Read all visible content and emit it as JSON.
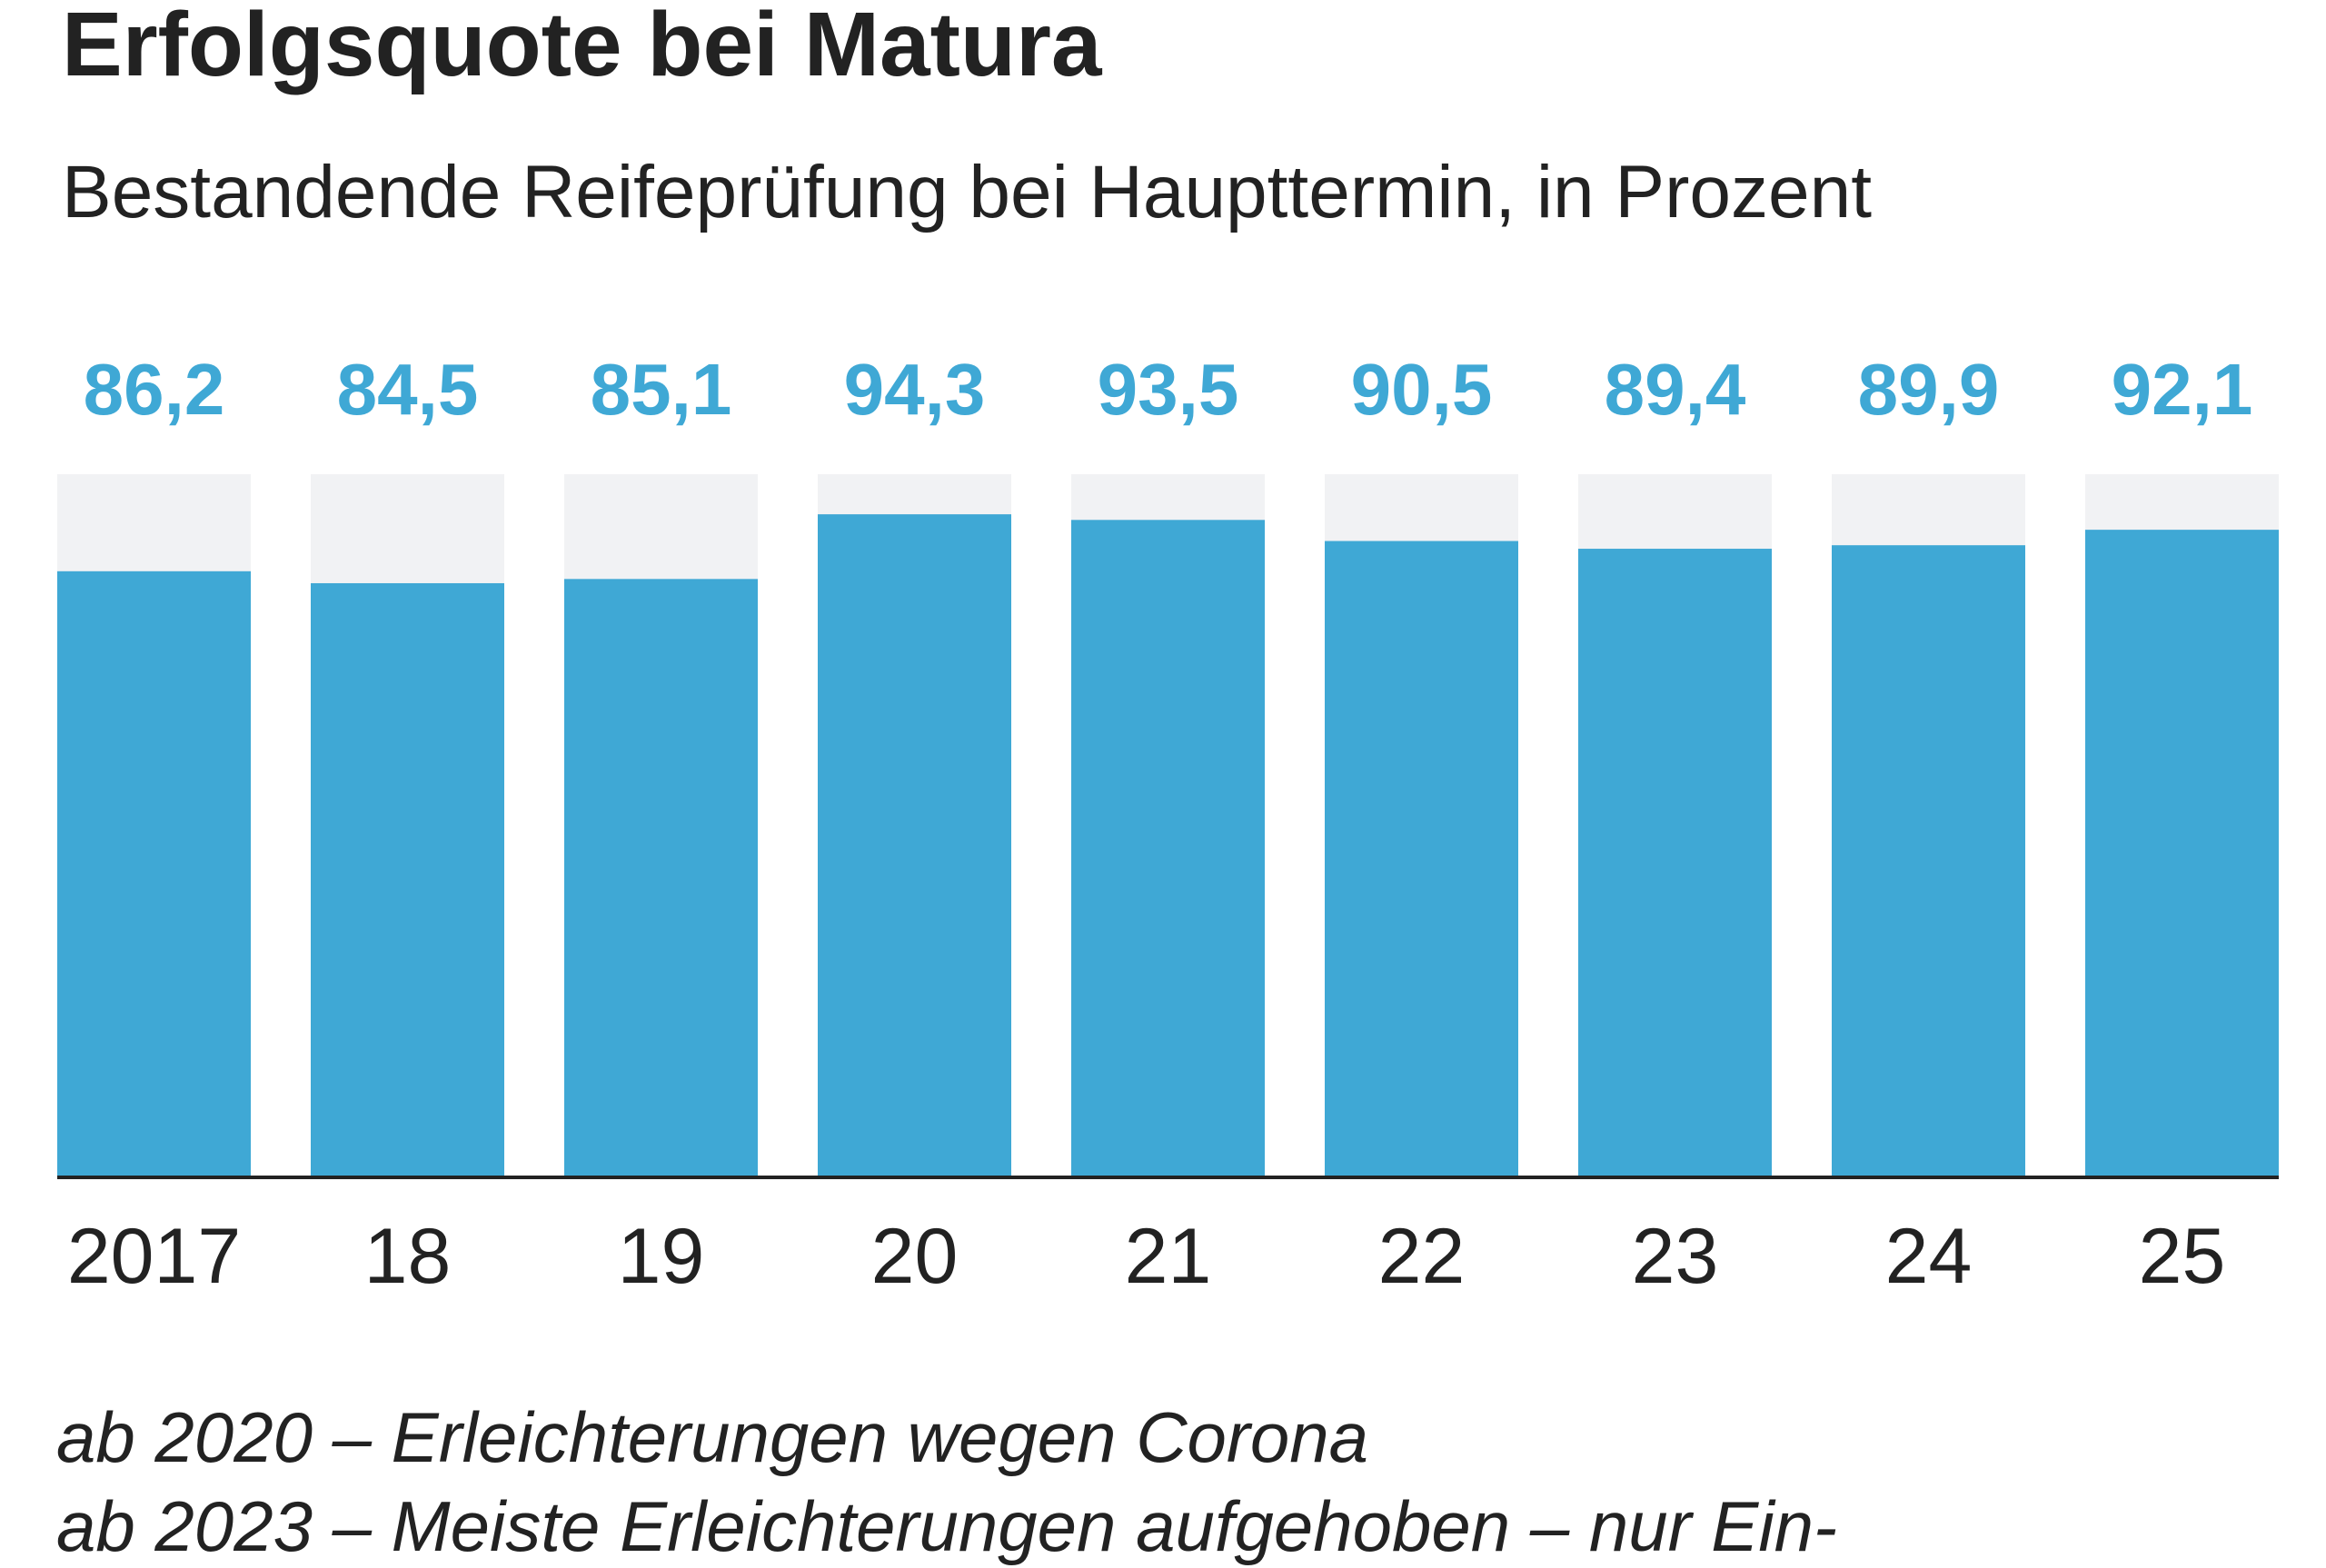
{
  "chart_data": {
    "type": "bar",
    "title": "Erfolgsquote bei Matura",
    "subtitle": "Bestandende Reifeprüfung bei Haupttermin, in Prozent",
    "categories": [
      "2017",
      "18",
      "19",
      "20",
      "21",
      "22",
      "23",
      "24",
      "25"
    ],
    "values": [
      86.2,
      84.5,
      85.1,
      94.3,
      93.5,
      90.5,
      89.4,
      89.9,
      92.1
    ],
    "data_labels": [
      "86,2",
      "84,5",
      "85,1",
      "94,3",
      "93,5",
      "90,5",
      "89,4",
      "89,9",
      "92,1"
    ],
    "ylim": [
      0,
      100
    ],
    "xlabel": "",
    "ylabel": "",
    "grid": false,
    "background_bars_to": 100,
    "colors": {
      "bar": "#3fa8d5",
      "background_bar": "#f1f2f4",
      "label": "#3fa8d5",
      "axis": "#222222"
    },
    "annotations": [
      "ab 2020 – Erleichterungen wegen Corona",
      "ab 2023 – Meiste Erleichterungen aufgehoben – nur Ein-"
    ]
  }
}
